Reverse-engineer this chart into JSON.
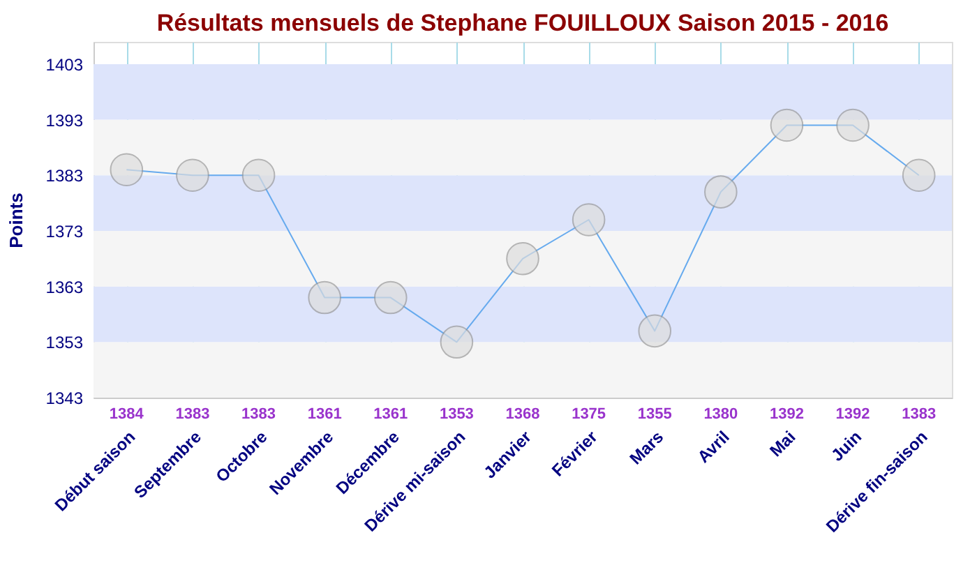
{
  "chart_data": {
    "type": "line",
    "title": "Résultats mensuels de Stephane FOUILLOUX Saison 2015 - 2016",
    "ylabel": "Points",
    "categories": [
      "Début saison",
      "Septembre",
      "Octobre",
      "Novembre",
      "Décembre",
      "Dérive mi-saison",
      "Janvier",
      "Février",
      "Mars",
      "Avril",
      "Mai",
      "Juin",
      "Dérive fin-saison"
    ],
    "series": [
      {
        "color": "#66aaee",
        "values": [
          1384,
          1383,
          1383,
          1361,
          1361,
          1353,
          1368,
          1375,
          1355,
          1380,
          1392,
          1392,
          1383
        ],
        "value_labels": [
          "1384",
          "1383",
          "1383",
          "1361",
          "1361",
          "1353",
          "1368",
          "1375",
          "1355",
          "1380",
          "1392",
          "1392",
          "1383"
        ]
      }
    ],
    "ylim": [
      1343,
      1407
    ],
    "yticks": [
      1343,
      1353,
      1363,
      1373,
      1383,
      1393,
      1403
    ],
    "bands": [
      {
        "axis": "y",
        "from": 1343,
        "to": 1353,
        "color": "#f5f5f5"
      },
      {
        "axis": "y",
        "from": 1353,
        "to": 1363,
        "color": "#dde4fb"
      },
      {
        "axis": "y",
        "from": 1363,
        "to": 1373,
        "color": "#f5f5f5"
      },
      {
        "axis": "y",
        "from": 1373,
        "to": 1383,
        "color": "#dde4fb"
      },
      {
        "axis": "y",
        "from": 1383,
        "to": 1393,
        "color": "#f5f5f5"
      },
      {
        "axis": "y",
        "from": 1393,
        "to": 1403,
        "color": "#dde4fb"
      }
    ],
    "grid": "x",
    "marker": "circle",
    "line_style": "solid"
  }
}
